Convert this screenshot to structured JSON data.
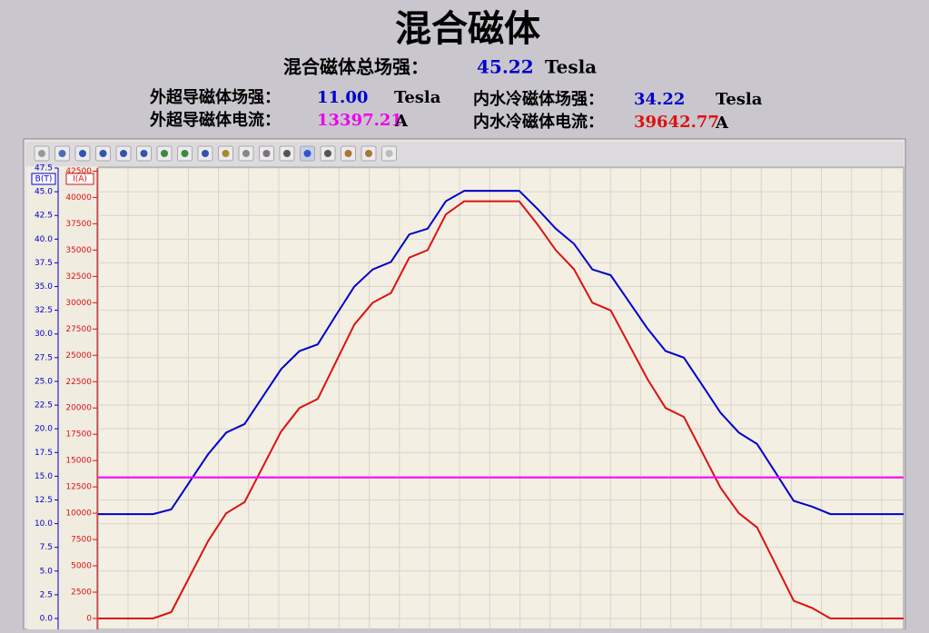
{
  "header": {
    "title": "混合磁体",
    "total": {
      "label": "混合磁体总场强：",
      "value": "45.22",
      "unit": "Tesla"
    },
    "outer_field": {
      "label": "外超导磁体场强：",
      "value": "11.00",
      "unit": "Tesla"
    },
    "inner_field": {
      "label": "内水冷磁体场强：",
      "value": "34.22",
      "unit": "Tesla"
    },
    "outer_current": {
      "label": "外超导磁体电流：",
      "value": "13397.21",
      "unit": "A"
    },
    "inner_current": {
      "label": "内水冷磁体电流：",
      "value": "39642.77",
      "unit": "A"
    }
  },
  "chart_data": {
    "type": "line",
    "y_label": "B(T)",
    "y2_label": "I(A)",
    "grid": true,
    "categories": [
      null,
      null,
      null,
      null,
      null,
      null,
      null,
      null,
      null,
      null,
      null,
      null,
      null,
      null,
      null,
      null,
      null,
      null,
      null,
      null,
      null,
      null,
      null,
      null,
      null,
      null,
      null,
      null,
      null,
      null,
      null,
      null,
      null,
      null,
      null,
      null,
      null,
      null,
      null,
      null,
      null,
      null,
      null,
      null,
      null
    ],
    "ylim": [
      0,
      47.5
    ],
    "yticks": [
      {
        "value": 0,
        "label": "0.0"
      },
      2.5,
      {
        "value": 5,
        "label": "5.0"
      },
      7.5,
      {
        "value": 10,
        "label": "10.0"
      },
      12.5,
      {
        "value": 15,
        "label": "15.0"
      },
      17.5,
      {
        "value": 20,
        "label": "20.0"
      },
      22.5,
      {
        "value": 25,
        "label": "25.0"
      },
      27.5,
      {
        "value": 30,
        "label": "30.0"
      },
      32.5,
      {
        "value": 35,
        "label": "35.0"
      },
      37.5,
      {
        "value": 40,
        "label": "40.0"
      },
      42.5,
      {
        "value": 45,
        "label": "45.0"
      },
      47.5
    ],
    "y2lim": [
      0,
      42800
    ],
    "y2ticks": [
      0,
      2500,
      5000,
      7500,
      10000,
      12500,
      15000,
      17500,
      20000,
      22500,
      25000,
      27500,
      30000,
      32500,
      35000,
      37500,
      40000,
      42500
    ],
    "series": [
      {
        "color": "#0000cc",
        "values": [
          11,
          11,
          11,
          11,
          11.5,
          14.4,
          17.3,
          19.6,
          20.5,
          23.4,
          26.3,
          28.2,
          28.9,
          32,
          35,
          36.8,
          37.6,
          40.5,
          41.1,
          44,
          45.1,
          45.1,
          45.1,
          45.1,
          43.2,
          41.1,
          39.5,
          36.8,
          36.2,
          33.4,
          30.6,
          28.2,
          27.5,
          24.6,
          21.7,
          19.6,
          18.4,
          15.4,
          12.4,
          11.8,
          11,
          11,
          11,
          11,
          11
        ]
      },
      {
        "color": "#dd1111",
        "axis": "y2",
        "values": [
          0,
          0,
          0,
          0,
          600,
          3970,
          7330,
          10000,
          11050,
          14400,
          17770,
          20000,
          20860,
          24400,
          27930,
          30000,
          30930,
          34280,
          35000,
          38390,
          39640,
          39640,
          39640,
          39640,
          37450,
          35000,
          33180,
          30000,
          29270,
          26030,
          22770,
          20000,
          19150,
          15780,
          12430,
          10000,
          8650,
          5170,
          1680,
          1000,
          0,
          0,
          0,
          0,
          0
        ]
      },
      {
        "color": "#ff00ff",
        "axis": "y2",
        "values": [
          13397,
          13397,
          13397,
          13397,
          13397,
          13397,
          13397,
          13397,
          13397,
          13397,
          13397,
          13397,
          13397,
          13397,
          13397,
          13397,
          13397,
          13397,
          13397,
          13397,
          13397,
          13397,
          13397,
          13397,
          13397,
          13397,
          13397,
          13397,
          13397,
          13397,
          13397,
          13397,
          13397,
          13397,
          13397,
          13397,
          13397,
          13397,
          13397,
          13397,
          13397,
          13397,
          13397,
          13397,
          13397
        ]
      }
    ]
  }
}
